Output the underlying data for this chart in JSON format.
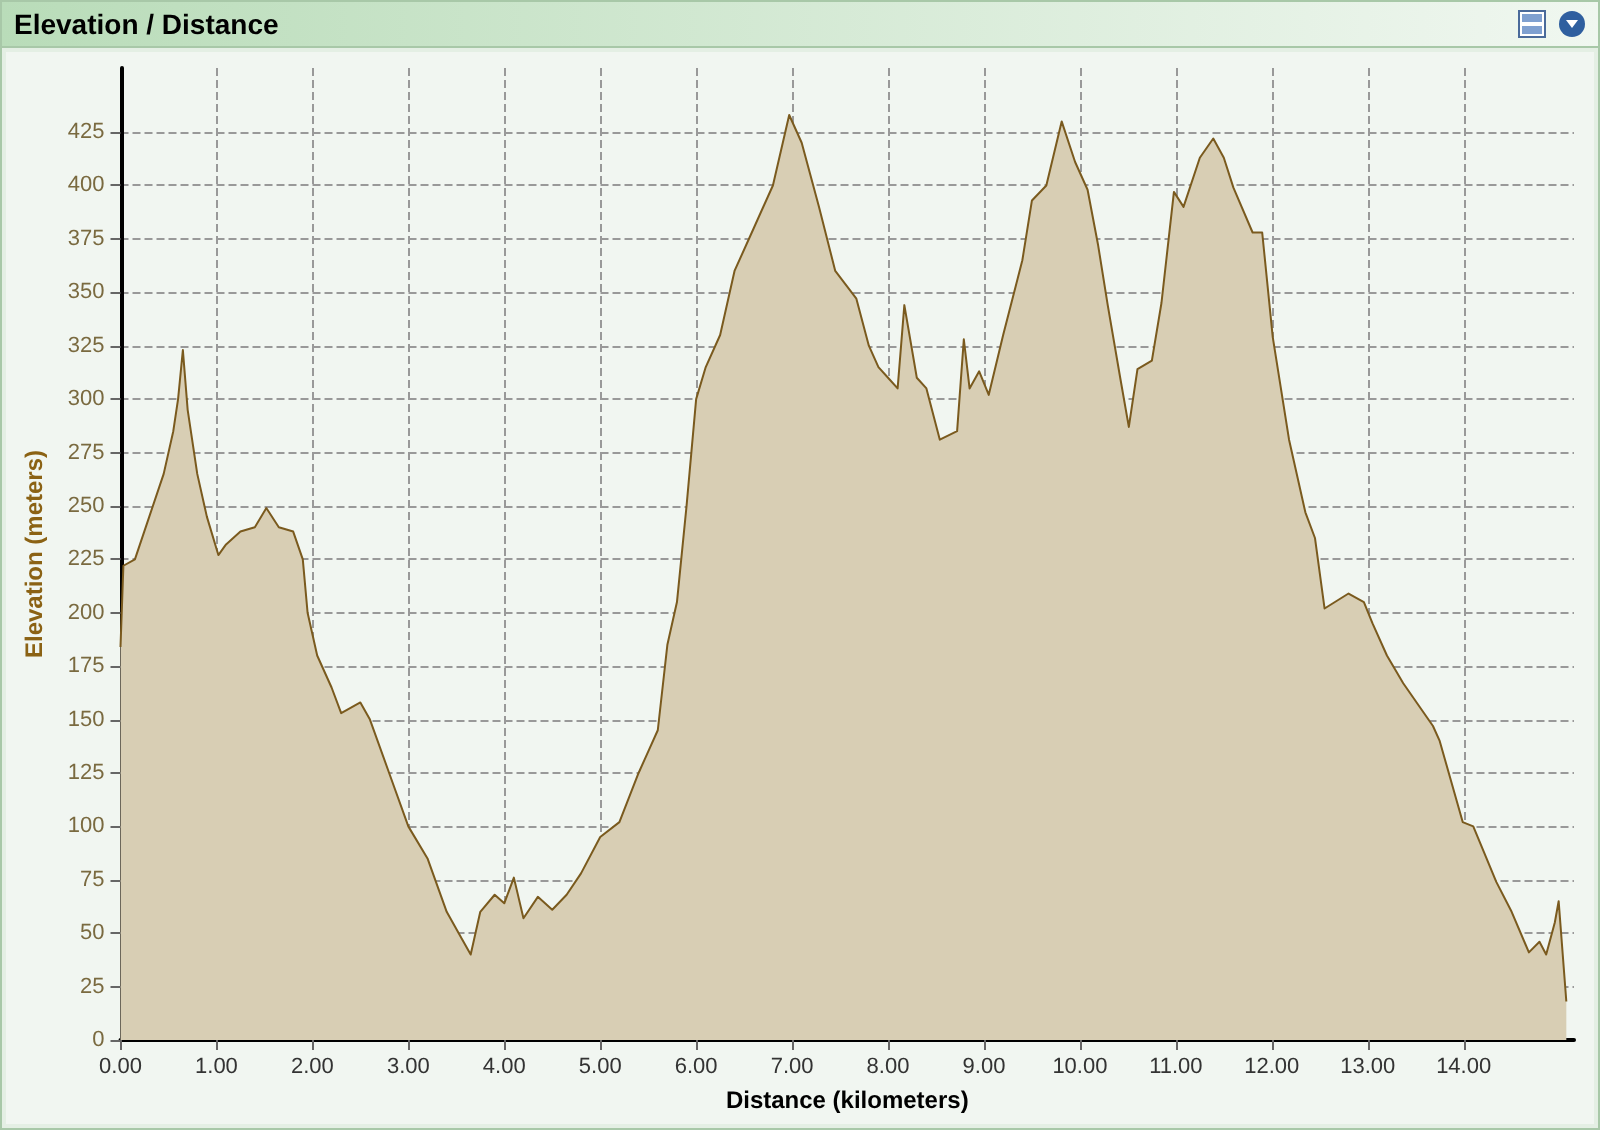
{
  "chart_data": {
    "type": "area",
    "title": "Elevation / Distance",
    "xlabel": "Distance (kilometers)",
    "ylabel": "Elevation (meters)",
    "x": [
      0,
      0.03,
      0.15,
      0.3,
      0.45,
      0.55,
      0.6,
      0.65,
      0.7,
      0.8,
      0.9,
      1.02,
      1.1,
      1.25,
      1.4,
      1.52,
      1.65,
      1.8,
      1.9,
      1.95,
      2.05,
      2.2,
      2.3,
      2.5,
      2.6,
      2.8,
      3.0,
      3.2,
      3.4,
      3.55,
      3.65,
      3.75,
      3.9,
      4.0,
      4.1,
      4.2,
      4.35,
      4.5,
      4.65,
      4.8,
      5.0,
      5.2,
      5.4,
      5.5,
      5.6,
      5.7,
      5.8,
      5.9,
      6.0,
      6.1,
      6.25,
      6.4,
      6.6,
      6.8,
      6.97,
      7.1,
      7.28,
      7.45,
      7.67,
      7.8,
      7.9,
      8.0,
      8.1,
      8.17,
      8.3,
      8.4,
      8.54,
      8.72,
      8.79,
      8.85,
      8.95,
      9.05,
      9.2,
      9.4,
      9.5,
      9.65,
      9.81,
      9.95,
      10.08,
      10.19,
      10.29,
      10.42,
      10.51,
      10.6,
      10.75,
      10.85,
      10.98,
      11.08,
      11.25,
      11.39,
      11.5,
      11.6,
      11.8,
      11.9,
      12.01,
      12.18,
      12.35,
      12.45,
      12.55,
      12.8,
      12.96,
      13.05,
      13.2,
      13.37,
      13.68,
      13.75,
      13.99,
      14.1,
      14.34,
      14.5,
      14.68,
      14.79,
      14.86,
      14.95,
      14.99,
      15.07
    ],
    "series": [
      {
        "color": "#7a5a1e",
        "values": [
          184,
          222,
          225,
          245,
          265,
          285,
          300,
          323,
          295,
          265,
          245,
          227,
          232,
          238,
          240,
          249,
          240,
          238,
          225,
          200,
          180,
          165,
          153,
          158,
          150,
          125,
          100,
          85,
          60,
          48,
          40,
          60,
          68,
          64,
          76,
          57,
          67,
          61,
          68,
          78,
          95,
          102,
          125,
          135,
          145,
          185,
          205,
          250,
          300,
          315,
          330,
          360,
          380,
          400,
          433,
          420,
          390,
          360,
          347,
          325,
          315,
          310,
          305,
          344,
          310,
          305,
          281,
          285,
          328,
          305,
          313,
          302,
          330,
          365,
          393,
          400,
          430,
          411,
          398,
          372,
          344,
          310,
          287,
          314,
          318,
          345,
          397,
          390,
          413,
          422,
          413,
          399,
          378,
          378,
          329,
          281,
          247,
          235,
          202,
          209,
          205,
          195,
          180,
          167,
          147,
          140,
          102,
          100,
          74,
          60,
          41,
          46,
          40,
          55,
          65,
          18
        ]
      }
    ],
    "xlim": [
      0,
      15.15
    ],
    "ylim": [
      0,
      455
    ],
    "xticks": [
      {
        "value": 0,
        "label": "0.00"
      },
      {
        "value": 1,
        "label": "1.00"
      },
      {
        "value": 2,
        "label": "2.00"
      },
      {
        "value": 3,
        "label": "3.00"
      },
      {
        "value": 4,
        "label": "4.00"
      },
      {
        "value": 5,
        "label": "5.00"
      },
      {
        "value": 6,
        "label": "6.00"
      },
      {
        "value": 7,
        "label": "7.00"
      },
      {
        "value": 8,
        "label": "8.00"
      },
      {
        "value": 9,
        "label": "9.00"
      },
      {
        "value": 10,
        "label": "10.00"
      },
      {
        "value": 11,
        "label": "11.00"
      },
      {
        "value": 12,
        "label": "12.00"
      },
      {
        "value": 13,
        "label": "13.00"
      },
      {
        "value": 14,
        "label": "14.00"
      }
    ],
    "yticks": [
      0,
      25,
      50,
      75,
      100,
      125,
      150,
      175,
      200,
      225,
      250,
      275,
      300,
      325,
      350,
      375,
      400,
      425
    ],
    "grid": true,
    "marker": "none",
    "line_style": "solid"
  }
}
